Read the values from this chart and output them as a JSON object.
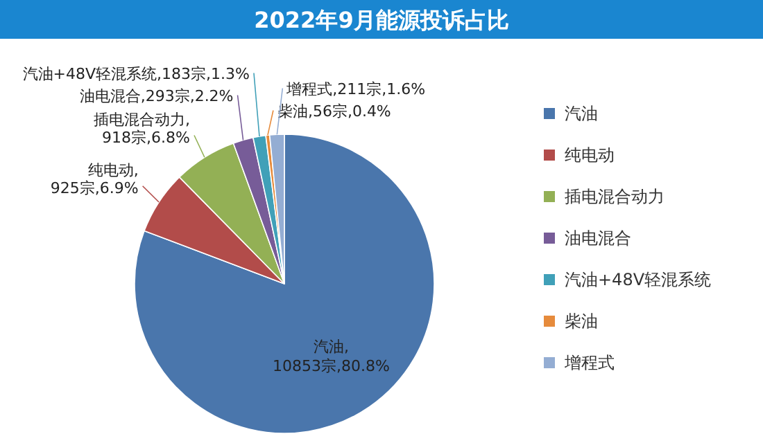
{
  "chart_data": {
    "type": "pie",
    "title": "2022年9月能源投诉占比",
    "categories": [
      "汽油",
      "纯电动",
      "插电混合动力",
      "油电混合",
      "汽油+48V轻混系统",
      "柴油",
      "增程式"
    ],
    "values": [
      10853,
      925,
      918,
      293,
      183,
      56,
      211
    ],
    "value_labels": [
      "汽油,10853宗,80.8%",
      "纯电动,925宗,6.9%",
      "插电混合动力,918宗,6.8%",
      "油电混合,293宗,2.2%",
      "汽油+48V轻混系统,183宗,1.3%",
      "柴油,56宗,0.4%",
      "增程式,211宗,1.6%"
    ],
    "colors": [
      "#4a76ac",
      "#b24c4a",
      "#93b055",
      "#775c98",
      "#40a0b8",
      "#e68b3c",
      "#94add3"
    ],
    "legend": "right"
  }
}
